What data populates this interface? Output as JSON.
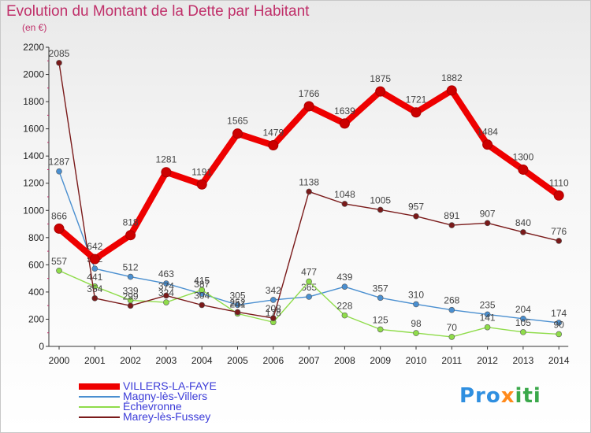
{
  "title": "Evolution du Montant de la Dette par Habitant",
  "subtitle": "(en €)",
  "logo": {
    "part1": "Pro",
    "part2": "x",
    "part3": "iti"
  },
  "chart_data": {
    "type": "line",
    "title": "Evolution du Montant de la Dette par Habitant",
    "ylabel": "(en €)",
    "xlabel": "",
    "ylim": [
      0,
      2200
    ],
    "yticks": [
      0,
      200,
      400,
      600,
      800,
      1000,
      1200,
      1400,
      1600,
      1800,
      2000,
      2200
    ],
    "x": [
      "2000",
      "2001",
      "2002",
      "2003",
      "2004",
      "2005",
      "2006",
      "2007",
      "2008",
      "2009",
      "2010",
      "2011",
      "2012",
      "2013",
      "2014"
    ],
    "grid": false,
    "legend_position": "bottom-left",
    "series": [
      {
        "name": "VILLERS-LA-FAYE",
        "color": "#ee0000",
        "values": [
          866,
          642,
          818,
          1281,
          1191,
          1565,
          1479,
          1766,
          1639,
          1875,
          1721,
          1882,
          1484,
          1300,
          1110
        ]
      },
      {
        "name": "Magny-lès-Villers",
        "color": "#4a8fd0",
        "values": [
          1287,
          572,
          512,
          463,
          387,
          305,
          342,
          365,
          439,
          357,
          310,
          268,
          235,
          204,
          174
        ]
      },
      {
        "name": "Échevronne",
        "color": "#8fdc4a",
        "values": [
          557,
          441,
          339,
          324,
          415,
          241,
          178,
          477,
          228,
          125,
          98,
          70,
          141,
          105,
          90
        ]
      },
      {
        "name": "Marey-lès-Fussey",
        "color": "#7a1a1a",
        "values": [
          2085,
          354,
          299,
          374,
          304,
          252,
          208,
          1138,
          1048,
          1005,
          957,
          891,
          907,
          840,
          776
        ]
      }
    ]
  }
}
